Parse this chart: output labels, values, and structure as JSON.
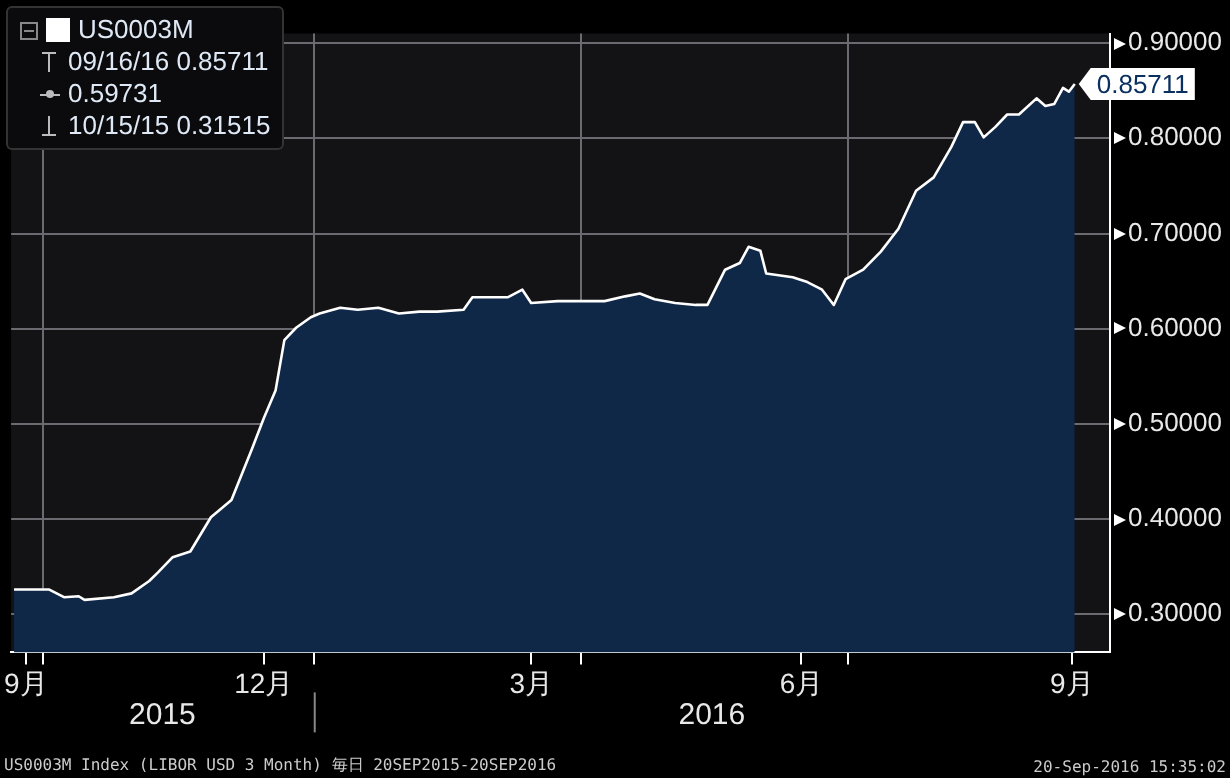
{
  "chart_data": {
    "type": "area",
    "legend": "top left",
    "grid": true,
    "x": [
      "2015-09-21",
      "2015-10-03",
      "2015-10-08",
      "2015-10-13",
      "2015-10-15",
      "2015-10-25",
      "2015-10-31",
      "2015-11-06",
      "2015-11-09",
      "2015-11-14",
      "2015-11-20",
      "2015-11-27",
      "2015-12-04",
      "2015-12-11",
      "2015-12-15",
      "2015-12-19",
      "2015-12-22",
      "2015-12-26",
      "2015-12-31",
      "2016-01-03",
      "2016-01-10",
      "2016-01-16",
      "2016-01-23",
      "2016-01-30",
      "2016-02-06",
      "2016-02-12",
      "2016-02-21",
      "2016-02-24",
      "2016-03-07",
      "2016-03-12",
      "2016-03-15",
      "2016-03-24",
      "2016-04-09",
      "2016-04-16",
      "2016-04-21",
      "2016-04-26",
      "2016-05-03",
      "2016-05-10",
      "2016-05-14",
      "2016-05-20",
      "2016-05-25",
      "2016-05-28",
      "2016-06-01",
      "2016-06-03",
      "2016-06-12",
      "2016-06-17",
      "2016-06-22",
      "2016-06-26",
      "2016-06-30",
      "2016-07-06",
      "2016-07-12",
      "2016-07-18",
      "2016-07-24",
      "2016-07-30",
      "2016-08-05",
      "2016-08-09",
      "2016-08-13",
      "2016-08-16",
      "2016-08-20",
      "2016-08-24",
      "2016-08-28",
      "2016-09-03",
      "2016-09-06",
      "2016-09-09",
      "2016-09-12",
      "2016-09-14",
      "2016-09-16"
    ],
    "series": [
      {
        "name": "US0003M",
        "color": "#ffffff",
        "values": [
          0.326,
          0.326,
          0.318,
          0.319,
          0.31515,
          0.318,
          0.322,
          0.335,
          0.344,
          0.36,
          0.366,
          0.402,
          0.42,
          0.474,
          0.506,
          0.535,
          0.588,
          0.601,
          0.612,
          0.616,
          0.622,
          0.62,
          0.622,
          0.616,
          0.618,
          0.618,
          0.62,
          0.633,
          0.633,
          0.641,
          0.627,
          0.629,
          0.629,
          0.634,
          0.637,
          0.631,
          0.627,
          0.625,
          0.625,
          0.662,
          0.669,
          0.686,
          0.682,
          0.658,
          0.654,
          0.649,
          0.641,
          0.625,
          0.652,
          0.662,
          0.681,
          0.705,
          0.745,
          0.759,
          0.791,
          0.817,
          0.817,
          0.801,
          0.812,
          0.825,
          0.825,
          0.842,
          0.834,
          0.836,
          0.853,
          0.849,
          0.85711
        ],
        "value_labels": [
          null,
          null,
          null,
          null,
          null,
          null,
          null,
          null,
          null,
          null,
          null,
          null,
          null,
          null,
          null,
          null,
          null,
          null,
          null,
          null,
          null,
          null,
          null,
          null,
          null,
          null,
          null,
          null,
          null,
          null,
          null,
          null,
          null,
          null,
          null,
          null,
          null,
          null,
          null,
          null,
          null,
          null,
          null,
          null,
          null,
          null,
          null,
          null,
          null,
          null,
          null,
          null,
          null,
          null,
          null,
          null,
          null,
          null,
          null,
          null,
          null,
          null,
          null,
          null,
          null,
          null,
          "0.85711"
        ]
      }
    ],
    "xlim": [
      "2015-09-20",
      "2016-09-28"
    ],
    "xticks": [
      {
        "value": "2015-09-25",
        "label": "9月"
      },
      {
        "value": "2015-10-01",
        "label": null
      },
      {
        "value": "2015-12-15",
        "label": "12月"
      },
      {
        "value": "2016-01-01",
        "label": null
      },
      {
        "value": "2016-03-15",
        "label": "3月"
      },
      {
        "value": "2016-04-01",
        "label": null
      },
      {
        "value": "2016-06-15",
        "label": "6月"
      },
      {
        "value": "2016-07-01",
        "label": null
      },
      {
        "value": "2016-09-15",
        "label": "9月"
      }
    ],
    "ylim": [
      0.26,
      0.91
    ],
    "yticks": [
      {
        "value": 0.3,
        "label": "0.30000"
      },
      {
        "value": 0.4,
        "label": "0.40000"
      },
      {
        "value": 0.5,
        "label": "0.50000"
      },
      {
        "value": 0.6,
        "label": "0.60000"
      },
      {
        "value": 0.7,
        "label": "0.70000"
      },
      {
        "value": 0.8,
        "label": "0.80000"
      },
      {
        "value": 0.9,
        "label": "0.90000"
      }
    ],
    "annotations": [
      "09/16/16 0.85711",
      "0.59731",
      "10/15/15 0.31515",
      "2015",
      "2016",
      "US0003M Index (LIBOR USD 3 Month)  毎日 20SEP2015-20SEP2016",
      "20-Sep-2016 15:35:02"
    ]
  }
}
